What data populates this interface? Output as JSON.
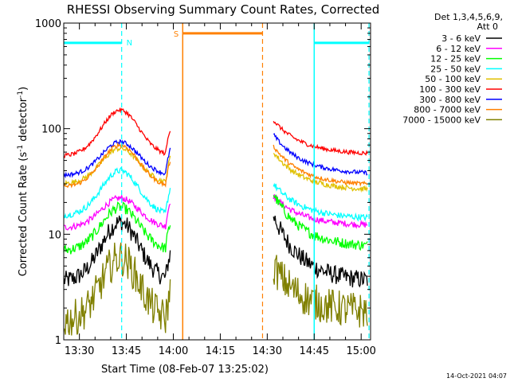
{
  "chart_data": {
    "type": "line",
    "title": "RHESSI Observing Summary Count Rates, Corrected",
    "xlabel": "Start Time (08-Feb-07 13:25:02)",
    "ylabel_main": "Corrected Count Rate (s",
    "ylabel_sup1": "-1",
    "ylabel_mid": " detector",
    "ylabel_sup2": "-1",
    "ylabel_end": ")",
    "y_scale": "log",
    "ylim": [
      1,
      1000
    ],
    "xlim_minutes": [
      0,
      98
    ],
    "x_tick_labels": [
      "13:30",
      "13:45",
      "14:00",
      "14:15",
      "14:30",
      "14:45",
      "15:00"
    ],
    "x_tick_minutes": [
      5,
      20,
      35,
      50,
      65,
      80,
      95
    ],
    "y_tick_labels": [
      "1",
      "10",
      "100",
      "1000"
    ],
    "y_tick_values": [
      1,
      10,
      100,
      1000
    ],
    "legend_header_1": "Det 1,3,4,5,6,9,",
    "legend_header_2": "Att 0",
    "legend_placement": "right",
    "timestamp": "14-Oct-2021 04:07",
    "series": [
      {
        "name": "3 - 6 keV",
        "color": "#000000",
        "base": 3.6,
        "peak": 13,
        "after": 3.5,
        "noise": 0.18,
        "after_peak": 15
      },
      {
        "name": "6 - 12 keV",
        "color": "#ff00ff",
        "base": 11.5,
        "peak": 22,
        "after": 12,
        "noise": 0.06,
        "after_peak": 23
      },
      {
        "name": "12 - 25 keV",
        "color": "#00ff00",
        "base": 7,
        "peak": 18,
        "after": 7.5,
        "noise": 0.1,
        "after_peak": 24
      },
      {
        "name": "25 - 50 keV",
        "color": "#00ffff",
        "base": 15,
        "peak": 40,
        "after": 14,
        "noise": 0.06,
        "after_peak": 30
      },
      {
        "name": "50 - 100 keV",
        "color": "#e0c000",
        "base": 30,
        "peak": 65,
        "after": 26,
        "noise": 0.05,
        "after_peak": 60
      },
      {
        "name": "100 - 300 keV",
        "color": "#ff0000",
        "base": 55,
        "peak": 150,
        "after": 57,
        "noise": 0.04,
        "after_peak": 120
      },
      {
        "name": "300 - 800 keV",
        "color": "#0000ff",
        "base": 36,
        "peak": 75,
        "after": 37,
        "noise": 0.04,
        "after_peak": 88
      },
      {
        "name": "800 - 7000 keV",
        "color": "#ff8000",
        "base": 28,
        "peak": 70,
        "after": 29,
        "noise": 0.04,
        "after_peak": 68
      },
      {
        "name": "7000 - 15000 keV",
        "color": "#808000",
        "base": 1.5,
        "peak": 6,
        "after": 1.8,
        "noise": 0.35,
        "after_peak": 5
      }
    ],
    "gap_minutes": [
      34,
      67
    ],
    "night_bars": [
      {
        "label": "N",
        "start": 0,
        "end": 18.5,
        "color": "#00ffff",
        "level": 650
      },
      {
        "label": "",
        "start": 80,
        "end": 97.5,
        "color": "#00ffff",
        "level": 650
      }
    ],
    "saa_bar": {
      "label": "S",
      "start": 38,
      "end": 63.5,
      "color": "#ff8000",
      "level": 800
    },
    "vertical_markers": [
      {
        "minute": 18.5,
        "color": "#00ffff",
        "style": "dashed"
      },
      {
        "minute": 38,
        "color": "#ff8000",
        "style": "solid"
      },
      {
        "minute": 63.5,
        "color": "#ff8000",
        "style": "dashed"
      },
      {
        "minute": 80,
        "color": "#00ffff",
        "style": "solid"
      },
      {
        "minute": 97.5,
        "color": "#00ffff",
        "style": "dashed"
      }
    ]
  }
}
